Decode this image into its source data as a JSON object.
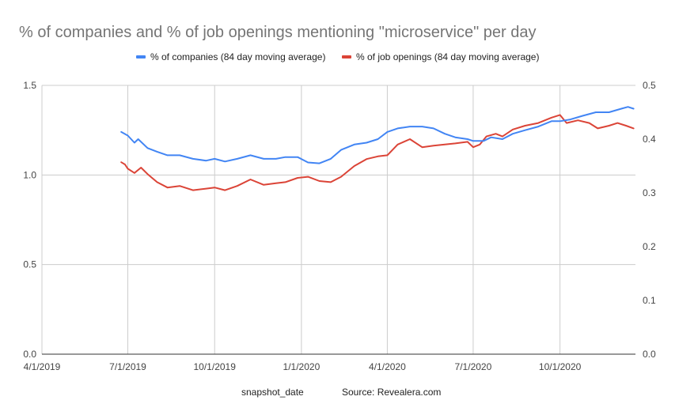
{
  "chart_data": {
    "type": "line",
    "title": "% of companies and % of job openings mentioning \"microservice\" per day",
    "xlabel": "snapshot_date",
    "source": "Source: Revealera.com",
    "x_ticks": [
      "4/1/2019",
      "7/1/2019",
      "10/1/2019",
      "1/1/2020",
      "4/1/2020",
      "7/1/2020",
      "10/1/2020"
    ],
    "xlim": [
      "2019-04-01",
      "2020-12-20"
    ],
    "y_left": {
      "ylim": [
        0,
        1.5
      ],
      "ticks": [
        "0.0",
        "0.5",
        "1.0",
        "1.5"
      ]
    },
    "y_right": {
      "ylim": [
        0,
        0.5
      ],
      "ticks": [
        "0.0",
        "0.1",
        "0.2",
        "0.3",
        "0.4",
        "0.5"
      ]
    },
    "grid": true,
    "legend_position": "top",
    "series": [
      {
        "name": "% of companies (84 day moving average)",
        "color": "#4285f4",
        "axis": "left",
        "points": [
          [
            "2019-06-24",
            1.24
          ],
          [
            "2019-07-01",
            1.22
          ],
          [
            "2019-07-08",
            1.18
          ],
          [
            "2019-07-12",
            1.2
          ],
          [
            "2019-07-22",
            1.15
          ],
          [
            "2019-08-01",
            1.13
          ],
          [
            "2019-08-12",
            1.11
          ],
          [
            "2019-08-25",
            1.11
          ],
          [
            "2019-09-08",
            1.09
          ],
          [
            "2019-09-22",
            1.08
          ],
          [
            "2019-10-01",
            1.09
          ],
          [
            "2019-10-12",
            1.075
          ],
          [
            "2019-10-25",
            1.09
          ],
          [
            "2019-11-08",
            1.11
          ],
          [
            "2019-11-22",
            1.09
          ],
          [
            "2019-12-05",
            1.09
          ],
          [
            "2019-12-15",
            1.1
          ],
          [
            "2019-12-28",
            1.1
          ],
          [
            "2020-01-08",
            1.07
          ],
          [
            "2020-01-20",
            1.065
          ],
          [
            "2020-02-01",
            1.09
          ],
          [
            "2020-02-12",
            1.14
          ],
          [
            "2020-02-26",
            1.17
          ],
          [
            "2020-03-10",
            1.18
          ],
          [
            "2020-03-22",
            1.2
          ],
          [
            "2020-04-01",
            1.24
          ],
          [
            "2020-04-12",
            1.26
          ],
          [
            "2020-04-25",
            1.27
          ],
          [
            "2020-05-08",
            1.27
          ],
          [
            "2020-05-20",
            1.26
          ],
          [
            "2020-06-01",
            1.23
          ],
          [
            "2020-06-12",
            1.21
          ],
          [
            "2020-06-25",
            1.2
          ],
          [
            "2020-07-01",
            1.19
          ],
          [
            "2020-07-12",
            1.19
          ],
          [
            "2020-07-20",
            1.21
          ],
          [
            "2020-08-01",
            1.2
          ],
          [
            "2020-08-12",
            1.23
          ],
          [
            "2020-08-25",
            1.25
          ],
          [
            "2020-09-08",
            1.27
          ],
          [
            "2020-09-22",
            1.3
          ],
          [
            "2020-10-01",
            1.3
          ],
          [
            "2020-10-12",
            1.31
          ],
          [
            "2020-10-25",
            1.33
          ],
          [
            "2020-11-08",
            1.35
          ],
          [
            "2020-11-22",
            1.35
          ],
          [
            "2020-12-05",
            1.37
          ],
          [
            "2020-12-12",
            1.38
          ],
          [
            "2020-12-18",
            1.37
          ]
        ]
      },
      {
        "name": "% of job openings (84 day moving average)",
        "color": "#db4437",
        "axis": "right",
        "points": [
          [
            "2019-06-24",
            0.357
          ],
          [
            "2019-06-28",
            0.353
          ],
          [
            "2019-07-01",
            0.345
          ],
          [
            "2019-07-08",
            0.337
          ],
          [
            "2019-07-15",
            0.347
          ],
          [
            "2019-07-22",
            0.335
          ],
          [
            "2019-08-01",
            0.32
          ],
          [
            "2019-08-12",
            0.31
          ],
          [
            "2019-08-25",
            0.313
          ],
          [
            "2019-09-08",
            0.305
          ],
          [
            "2019-09-22",
            0.308
          ],
          [
            "2019-10-01",
            0.31
          ],
          [
            "2019-10-12",
            0.305
          ],
          [
            "2019-10-25",
            0.313
          ],
          [
            "2019-11-08",
            0.325
          ],
          [
            "2019-11-22",
            0.315
          ],
          [
            "2019-12-05",
            0.318
          ],
          [
            "2019-12-15",
            0.32
          ],
          [
            "2019-12-28",
            0.328
          ],
          [
            "2020-01-08",
            0.33
          ],
          [
            "2020-01-20",
            0.322
          ],
          [
            "2020-02-01",
            0.32
          ],
          [
            "2020-02-12",
            0.33
          ],
          [
            "2020-02-26",
            0.35
          ],
          [
            "2020-03-10",
            0.363
          ],
          [
            "2020-03-22",
            0.368
          ],
          [
            "2020-04-01",
            0.37
          ],
          [
            "2020-04-12",
            0.39
          ],
          [
            "2020-04-25",
            0.4
          ],
          [
            "2020-05-08",
            0.385
          ],
          [
            "2020-05-20",
            0.388
          ],
          [
            "2020-06-01",
            0.39
          ],
          [
            "2020-06-12",
            0.392
          ],
          [
            "2020-06-25",
            0.395
          ],
          [
            "2020-07-01",
            0.385
          ],
          [
            "2020-07-08",
            0.39
          ],
          [
            "2020-07-15",
            0.405
          ],
          [
            "2020-07-25",
            0.41
          ],
          [
            "2020-08-01",
            0.405
          ],
          [
            "2020-08-12",
            0.418
          ],
          [
            "2020-08-25",
            0.425
          ],
          [
            "2020-09-08",
            0.43
          ],
          [
            "2020-09-22",
            0.44
          ],
          [
            "2020-10-01",
            0.445
          ],
          [
            "2020-10-08",
            0.43
          ],
          [
            "2020-10-20",
            0.435
          ],
          [
            "2020-11-01",
            0.43
          ],
          [
            "2020-11-10",
            0.42
          ],
          [
            "2020-11-22",
            0.425
          ],
          [
            "2020-12-01",
            0.43
          ],
          [
            "2020-12-10",
            0.425
          ],
          [
            "2020-12-18",
            0.42
          ]
        ]
      }
    ]
  }
}
